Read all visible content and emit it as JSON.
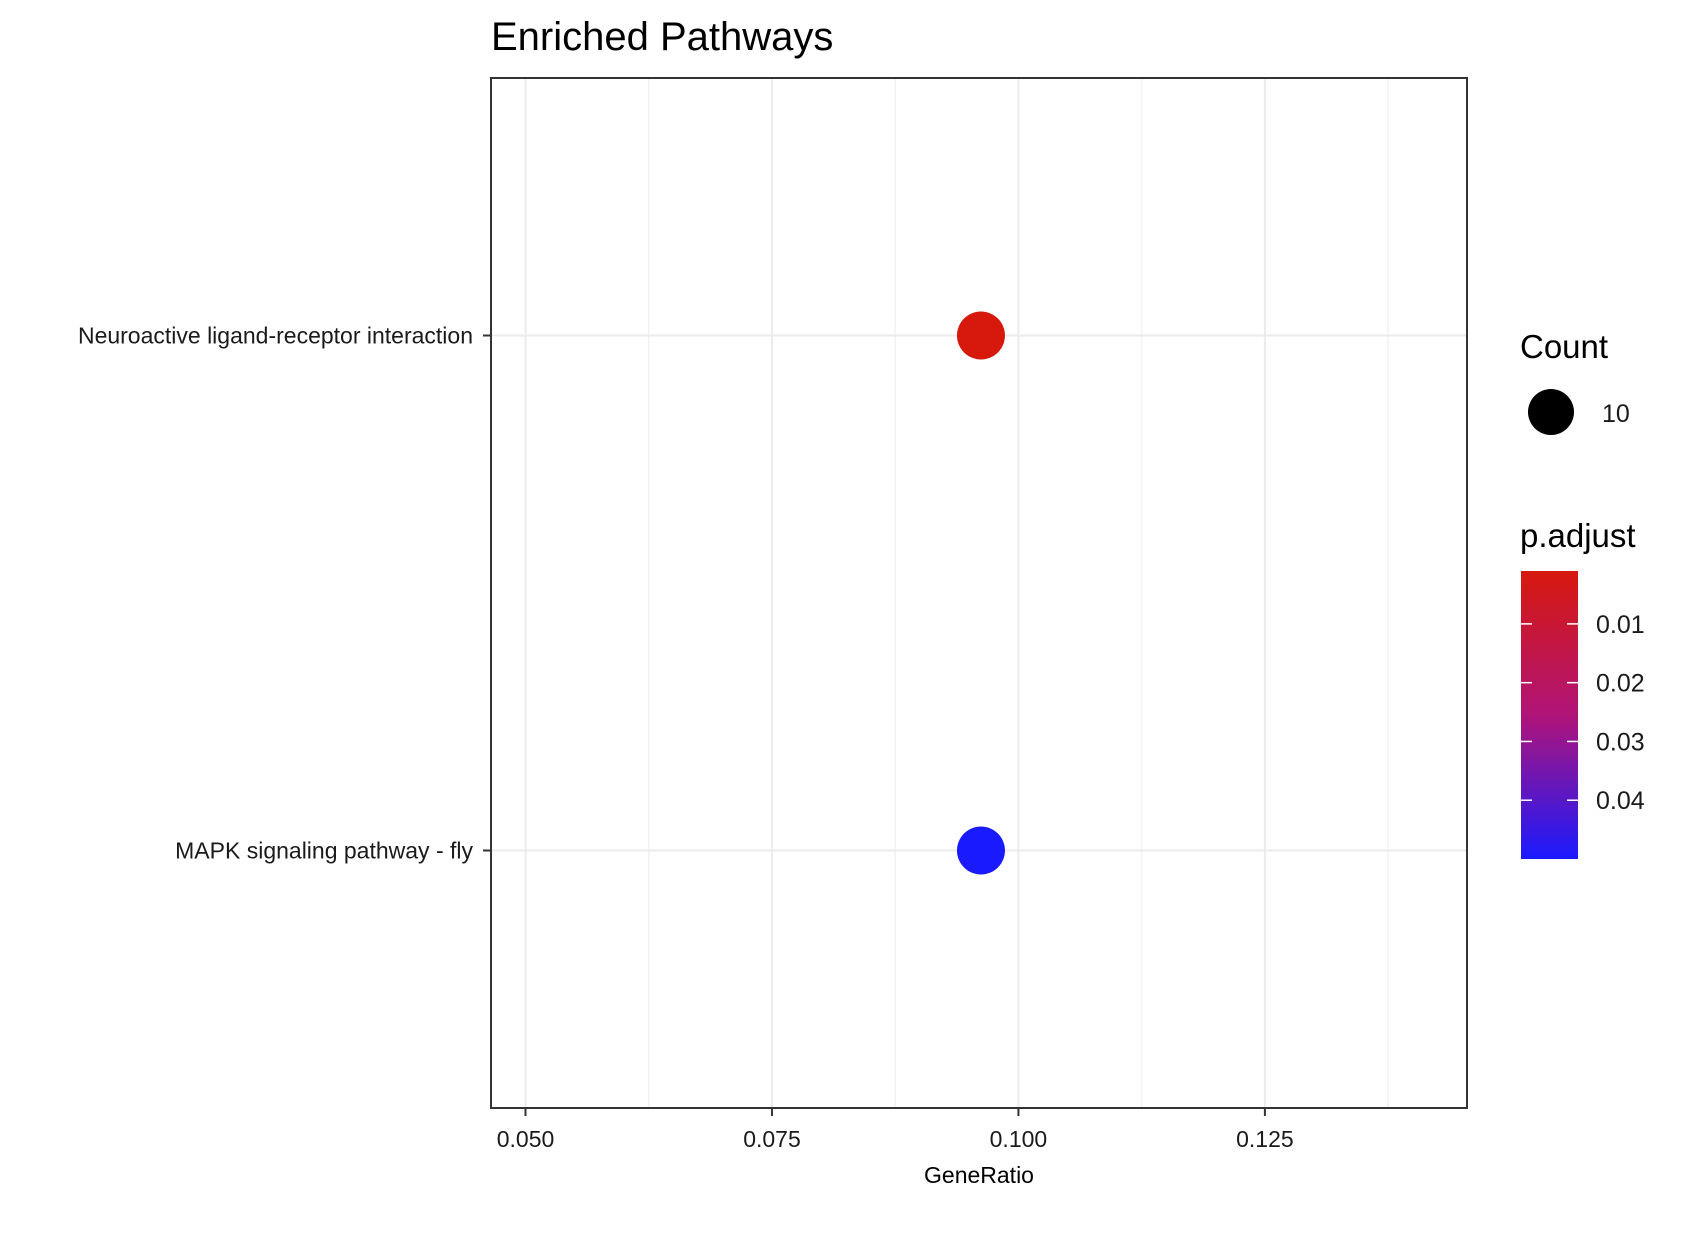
{
  "chart_data": {
    "type": "scatter",
    "title": "Enriched Pathways",
    "xlabel": "GeneRatio",
    "ylabel": "",
    "xlim": [
      0.0465,
      0.1455
    ],
    "x_ticks": [
      0.05,
      0.075,
      0.1,
      0.125
    ],
    "x_tick_labels": [
      "0.050",
      "0.075",
      "0.100",
      "0.125"
    ],
    "categories": [
      "Neuroactive ligand-receptor interaction",
      "MAPK signaling pathway - fly"
    ],
    "points": [
      {
        "category": "Neuroactive ligand-receptor interaction",
        "x": 0.0962,
        "count": 10,
        "p_adjust": 0.002,
        "color": "#d7190d"
      },
      {
        "category": "MAPK signaling pathway - fly",
        "x": 0.0962,
        "count": 10,
        "p_adjust": 0.048,
        "color": "#1a1aff"
      }
    ],
    "grid": true,
    "legend": {
      "placement": "right",
      "size": {
        "title": "Count",
        "values": [
          10
        ],
        "labels": [
          "10"
        ]
      },
      "color": {
        "title": "p.adjust",
        "range": [
          0.001,
          0.05
        ],
        "low_color": "#d7190d",
        "high_color": "#1a1aff",
        "ticks": [
          0.01,
          0.02,
          0.03,
          0.04
        ],
        "tick_labels": [
          "0.01",
          "0.02",
          "0.03",
          "0.04"
        ]
      }
    }
  }
}
